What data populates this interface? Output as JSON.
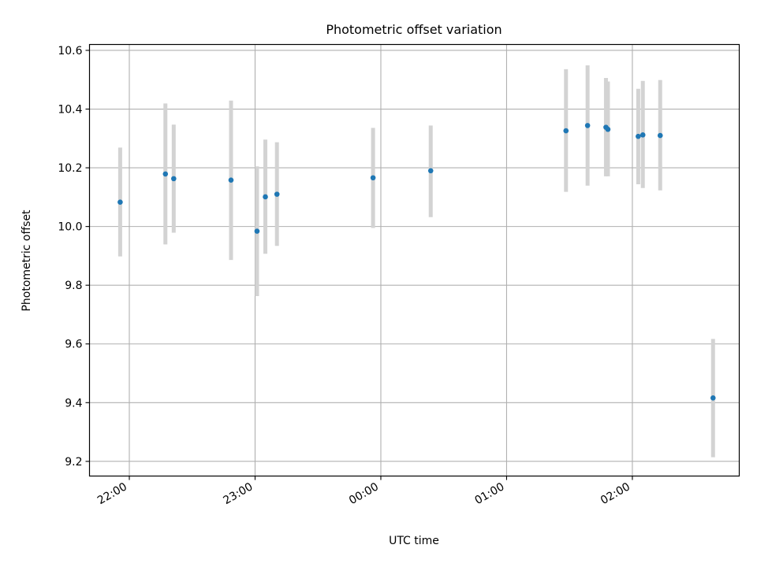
{
  "chart_data": {
    "type": "scatter",
    "title": "Photometric offset variation",
    "xlabel": "UTC time",
    "ylabel": "Photometric offset",
    "x_ticks": [
      "22:00",
      "23:00",
      "00:00",
      "01:00",
      "02:00"
    ],
    "x_tick_times": [
      "2000-01-01T22:00",
      "2000-01-01T23:00",
      "2000-01-02T00:00",
      "2000-01-02T01:00",
      "2000-01-02T02:00"
    ],
    "xlim": [
      "2000-01-01T21:41",
      "2000-01-02T02:51"
    ],
    "y_ticks": [
      "9.2",
      "9.4",
      "9.6",
      "9.8",
      "10.0",
      "10.2",
      "10.4",
      "10.6"
    ],
    "ylim": [
      9.15,
      10.62
    ],
    "grid": true,
    "marker_color": "#1f77b4",
    "errorbar_color": "#d3d3d3",
    "points": [
      {
        "x": "2000-01-01T21:55:38",
        "y": 10.083,
        "ymin": 9.898,
        "ymax": 10.269
      },
      {
        "x": "2000-01-01T22:17:13",
        "y": 10.179,
        "ymin": 9.939,
        "ymax": 10.419
      },
      {
        "x": "2000-01-01T22:21:11",
        "y": 10.163,
        "ymin": 9.979,
        "ymax": 10.347
      },
      {
        "x": "2000-01-01T22:48:31",
        "y": 10.158,
        "ymin": 9.886,
        "ymax": 10.429
      },
      {
        "x": "2000-01-01T23:00:56",
        "y": 9.984,
        "ymin": 9.763,
        "ymax": 10.205
      },
      {
        "x": "2000-01-01T23:04:54",
        "y": 10.101,
        "ymin": 9.907,
        "ymax": 10.296
      },
      {
        "x": "2000-01-01T23:10:26",
        "y": 10.11,
        "ymin": 9.934,
        "ymax": 10.287
      },
      {
        "x": "2000-01-01T23:56:17",
        "y": 10.166,
        "ymin": 9.995,
        "ymax": 10.336
      },
      {
        "x": "2000-01-02T00:23:48",
        "y": 10.19,
        "ymin": 10.032,
        "ymax": 10.344
      },
      {
        "x": "2000-01-02T01:28:20",
        "y": 10.326,
        "ymin": 10.118,
        "ymax": 10.536
      },
      {
        "x": "2000-01-02T01:38:38",
        "y": 10.344,
        "ymin": 10.139,
        "ymax": 10.549
      },
      {
        "x": "2000-01-02T01:47:24",
        "y": 10.338,
        "ymin": 10.171,
        "ymax": 10.506
      },
      {
        "x": "2000-01-02T01:48:20",
        "y": 10.331,
        "ymin": 10.171,
        "ymax": 10.494
      },
      {
        "x": "2000-01-02T02:02:48",
        "y": 10.307,
        "ymin": 10.144,
        "ymax": 10.469
      },
      {
        "x": "2000-01-02T02:05:00",
        "y": 10.312,
        "ymin": 10.131,
        "ymax": 10.496
      },
      {
        "x": "2000-01-02T02:13:17",
        "y": 10.31,
        "ymin": 10.123,
        "ymax": 10.499
      },
      {
        "x": "2000-01-02T02:38:30",
        "y": 9.416,
        "ymin": 9.214,
        "ymax": 9.617
      }
    ]
  }
}
